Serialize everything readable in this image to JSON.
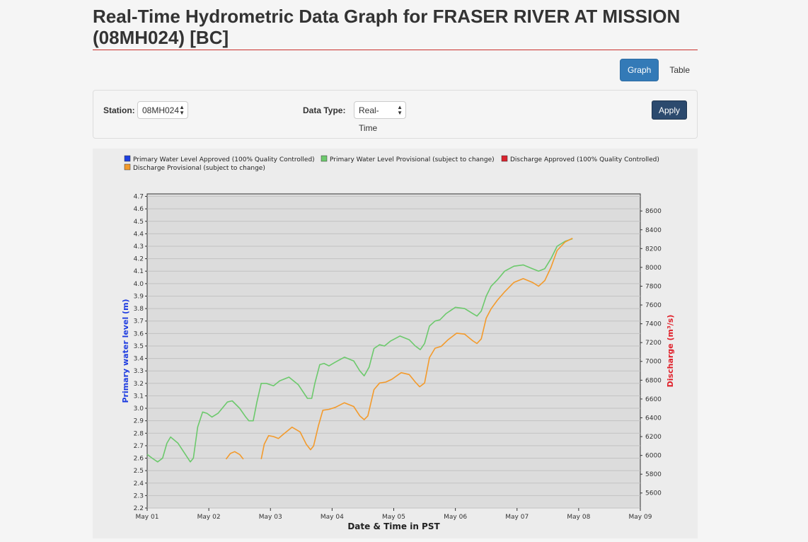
{
  "header": {
    "title": "Real-Time Hydrometric Data Graph for FRASER RIVER AT MISSION (08MH024) [BC]"
  },
  "view_toggle": {
    "graph_label": "Graph",
    "table_label": "Table",
    "active": "Graph"
  },
  "filters": {
    "station_label": "Station:",
    "station_value": "08MH024",
    "data_type_label": "Data Type:",
    "data_type_value": "Real-Time",
    "apply_label": "Apply"
  },
  "colors": {
    "primary_approved": "#1d3fe0",
    "primary_provisional": "#6cc96c",
    "discharge_approved": "#d9232e",
    "discharge_provisional": "#f39a2b",
    "left_axis_title": "#1f3de0",
    "right_axis_title": "#e0202a",
    "plot_bg": "#dcdcdc",
    "accent_rule": "#c9302c"
  },
  "chart_data": {
    "type": "line",
    "legend": [
      {
        "name": "Primary Water Level Approved (100% Quality Controlled)",
        "color": "#1d3fe0"
      },
      {
        "name": "Primary Water Level Provisional (subject to change)",
        "color": "#6cc96c"
      },
      {
        "name": "Discharge Approved (100% Quality Controlled)",
        "color": "#d9232e"
      },
      {
        "name": "Discharge Provisional (subject to change)",
        "color": "#f39a2b"
      }
    ],
    "legend_position": "top",
    "xlabel": "Date & Time in PST",
    "ylabel_left": "Primary water level (m)",
    "ylabel_right": "Discharge (m³/s)",
    "x_ticks": [
      "May 01",
      "May 02",
      "May 03",
      "May 04",
      "May 05",
      "May 06",
      "May 07",
      "May 08",
      "May 09"
    ],
    "xlim": [
      0,
      8
    ],
    "x_unit": "days since May 01 00:00 PST",
    "ylim_left": [
      2.2,
      4.72
    ],
    "y_ticks_left": [
      2.2,
      2.3,
      2.4,
      2.5,
      2.6,
      2.7,
      2.8,
      2.9,
      3.0,
      3.1,
      3.2,
      3.3,
      3.4,
      3.5,
      3.6,
      3.7,
      3.8,
      3.9,
      4.0,
      4.1,
      4.2,
      4.3,
      4.4,
      4.5,
      4.6,
      4.7
    ],
    "ylim_right": [
      5440,
      8782
    ],
    "y_ticks_right": [
      5600,
      5800,
      6000,
      6200,
      6400,
      6600,
      6800,
      7000,
      7200,
      7400,
      7600,
      7800,
      8000,
      8200,
      8400,
      8600
    ],
    "grid": true,
    "series": [
      {
        "name": "Primary Water Level Provisional (subject to change)",
        "axis": "left",
        "color": "#6cc96c",
        "points": [
          [
            0.0,
            2.63
          ],
          [
            0.08,
            2.6
          ],
          [
            0.17,
            2.57
          ],
          [
            0.25,
            2.6
          ],
          [
            0.32,
            2.72
          ],
          [
            0.38,
            2.77
          ],
          [
            0.5,
            2.72
          ],
          [
            0.62,
            2.63
          ],
          [
            0.7,
            2.57
          ],
          [
            0.75,
            2.6
          ],
          [
            0.82,
            2.85
          ],
          [
            0.9,
            2.97
          ],
          [
            0.97,
            2.96
          ],
          [
            1.05,
            2.93
          ],
          [
            1.15,
            2.96
          ],
          [
            1.3,
            3.05
          ],
          [
            1.38,
            3.06
          ],
          [
            1.5,
            3.0
          ],
          [
            1.6,
            2.93
          ],
          [
            1.65,
            2.9
          ],
          [
            1.72,
            2.9
          ],
          [
            1.78,
            3.05
          ],
          [
            1.85,
            3.2
          ],
          [
            1.93,
            3.2
          ],
          [
            2.05,
            3.18
          ],
          [
            2.15,
            3.22
          ],
          [
            2.3,
            3.25
          ],
          [
            2.45,
            3.19
          ],
          [
            2.6,
            3.08
          ],
          [
            2.67,
            3.08
          ],
          [
            2.72,
            3.2
          ],
          [
            2.8,
            3.35
          ],
          [
            2.87,
            3.36
          ],
          [
            2.95,
            3.34
          ],
          [
            3.05,
            3.37
          ],
          [
            3.2,
            3.41
          ],
          [
            3.35,
            3.38
          ],
          [
            3.45,
            3.3
          ],
          [
            3.52,
            3.26
          ],
          [
            3.6,
            3.33
          ],
          [
            3.68,
            3.48
          ],
          [
            3.77,
            3.51
          ],
          [
            3.85,
            3.5
          ],
          [
            3.95,
            3.54
          ],
          [
            4.1,
            3.58
          ],
          [
            4.25,
            3.55
          ],
          [
            4.35,
            3.5
          ],
          [
            4.43,
            3.47
          ],
          [
            4.5,
            3.52
          ],
          [
            4.58,
            3.66
          ],
          [
            4.67,
            3.7
          ],
          [
            4.75,
            3.71
          ],
          [
            4.85,
            3.76
          ],
          [
            5.0,
            3.81
          ],
          [
            5.15,
            3.8
          ],
          [
            5.28,
            3.76
          ],
          [
            5.35,
            3.74
          ],
          [
            5.42,
            3.78
          ],
          [
            5.5,
            3.9
          ],
          [
            5.58,
            3.98
          ],
          [
            5.68,
            4.03
          ],
          [
            5.8,
            4.1
          ],
          [
            5.95,
            4.14
          ],
          [
            6.1,
            4.15
          ],
          [
            6.25,
            4.12
          ],
          [
            6.35,
            4.1
          ],
          [
            6.45,
            4.12
          ],
          [
            6.55,
            4.2
          ],
          [
            6.65,
            4.3
          ],
          [
            6.78,
            4.34
          ],
          [
            6.9,
            4.36
          ]
        ]
      },
      {
        "name": "Discharge Provisional (subject to change)",
        "axis": "right",
        "color": "#f39a2b",
        "segments": [
          [
            [
              1.28,
              5960
            ],
            [
              1.35,
              6020
            ],
            [
              1.42,
              6040
            ],
            [
              1.5,
              6010
            ],
            [
              1.56,
              5960
            ]
          ],
          [
            [
              1.85,
              5960
            ],
            [
              1.9,
              6120
            ],
            [
              1.97,
              6210
            ],
            [
              2.05,
              6200
            ],
            [
              2.13,
              6180
            ],
            [
              2.2,
              6220
            ],
            [
              2.35,
              6300
            ],
            [
              2.48,
              6250
            ],
            [
              2.58,
              6120
            ],
            [
              2.65,
              6060
            ],
            [
              2.7,
              6100
            ],
            [
              2.78,
              6320
            ],
            [
              2.85,
              6480
            ],
            [
              2.95,
              6490
            ],
            [
              3.05,
              6510
            ],
            [
              3.2,
              6560
            ],
            [
              3.35,
              6520
            ],
            [
              3.45,
              6420
            ],
            [
              3.52,
              6380
            ],
            [
              3.58,
              6420
            ],
            [
              3.68,
              6700
            ],
            [
              3.77,
              6770
            ],
            [
              3.87,
              6780
            ],
            [
              3.97,
              6810
            ],
            [
              4.12,
              6880
            ],
            [
              4.25,
              6860
            ],
            [
              4.35,
              6780
            ],
            [
              4.42,
              6730
            ],
            [
              4.5,
              6770
            ],
            [
              4.58,
              7040
            ],
            [
              4.67,
              7140
            ],
            [
              4.77,
              7160
            ],
            [
              4.88,
              7230
            ],
            [
              5.02,
              7300
            ],
            [
              5.15,
              7290
            ],
            [
              5.28,
              7220
            ],
            [
              5.35,
              7190
            ],
            [
              5.42,
              7240
            ],
            [
              5.5,
              7460
            ],
            [
              5.58,
              7560
            ],
            [
              5.68,
              7650
            ],
            [
              5.8,
              7740
            ],
            [
              5.95,
              7840
            ],
            [
              6.1,
              7880
            ],
            [
              6.25,
              7840
            ],
            [
              6.35,
              7800
            ],
            [
              6.45,
              7860
            ],
            [
              6.55,
              8000
            ],
            [
              6.65,
              8180
            ],
            [
              6.78,
              8270
            ],
            [
              6.9,
              8310
            ]
          ]
        ]
      }
    ]
  }
}
